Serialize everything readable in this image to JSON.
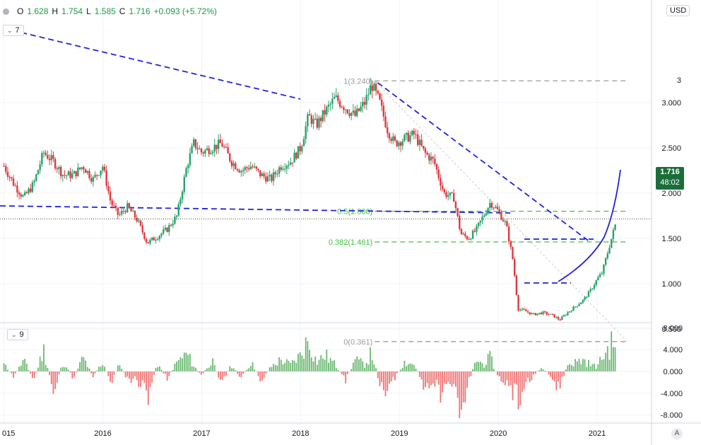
{
  "header": {
    "open_label": "O",
    "open": "1.628",
    "high_label": "H",
    "high": "1.754",
    "low_label": "L",
    "low": "1.585",
    "close_label": "C",
    "close": "1.716",
    "change": "+0.093 (+5.72%)"
  },
  "pane_badges": {
    "main": "7",
    "oscillator": "9"
  },
  "currency_button": "USD",
  "auto_scale_button": "A",
  "last_price": {
    "value": "1.716",
    "countdown": "48:02"
  },
  "colors": {
    "up": "#26a269",
    "down": "#e0383e",
    "trend": "#2222dd",
    "fib_green": "#3ec43e",
    "fib_gray": "#9b9b9b",
    "osc_up": "#6ab870",
    "osc_down": "#f07373"
  },
  "chart_data": [
    {
      "type": "candlestick",
      "title": "",
      "xlabel": "",
      "ylabel": "USD",
      "x_ticks": [
        "015",
        "2016",
        "2017",
        "2018",
        "2019",
        "2020",
        "2021"
      ],
      "y_ticks": [
        "3",
        "3.000",
        "2.500",
        "2.000",
        "1.500",
        "1.000",
        "0.500"
      ],
      "ylim": [
        0.25,
        3.3
      ],
      "last_price": 1.716,
      "fibonacci": [
        {
          "label": "1(3.240)",
          "value": 3.24
        },
        {
          "label": "0.5(1.800)",
          "value": 1.8
        },
        {
          "label": "0.382(1.461)",
          "value": 1.461
        },
        {
          "label": "0(0.361)",
          "value": 0.361
        }
      ],
      "series": [
        {
          "name": "weekly close (approx.)",
          "points": [
            [
              2015.0,
              2.3
            ],
            [
              2015.1,
              2.1
            ],
            [
              2015.2,
              1.95
            ],
            [
              2015.3,
              2.1
            ],
            [
              2015.4,
              2.45
            ],
            [
              2015.5,
              2.35
            ],
            [
              2015.6,
              2.2
            ],
            [
              2015.7,
              2.2
            ],
            [
              2015.8,
              2.3
            ],
            [
              2015.9,
              2.15
            ],
            [
              2016.0,
              2.3
            ],
            [
              2016.08,
              1.9
            ],
            [
              2016.16,
              1.75
            ],
            [
              2016.25,
              1.85
            ],
            [
              2016.35,
              1.7
            ],
            [
              2016.45,
              1.45
            ],
            [
              2016.55,
              1.52
            ],
            [
              2016.65,
              1.6
            ],
            [
              2016.75,
              1.75
            ],
            [
              2016.85,
              2.3
            ],
            [
              2016.92,
              2.55
            ],
            [
              2017.0,
              2.45
            ],
            [
              2017.1,
              2.5
            ],
            [
              2017.2,
              2.55
            ],
            [
              2017.3,
              2.35
            ],
            [
              2017.4,
              2.25
            ],
            [
              2017.5,
              2.3
            ],
            [
              2017.6,
              2.2
            ],
            [
              2017.7,
              2.15
            ],
            [
              2017.8,
              2.3
            ],
            [
              2017.9,
              2.35
            ],
            [
              2018.0,
              2.5
            ],
            [
              2018.08,
              2.85
            ],
            [
              2018.16,
              2.75
            ],
            [
              2018.25,
              2.9
            ],
            [
              2018.35,
              3.05
            ],
            [
              2018.45,
              2.95
            ],
            [
              2018.55,
              2.85
            ],
            [
              2018.65,
              3.0
            ],
            [
              2018.72,
              3.2
            ],
            [
              2018.8,
              3.0
            ],
            [
              2018.88,
              2.7
            ],
            [
              2018.95,
              2.55
            ],
            [
              2019.05,
              2.6
            ],
            [
              2019.15,
              2.65
            ],
            [
              2019.25,
              2.45
            ],
            [
              2019.35,
              2.35
            ],
            [
              2019.45,
              2.0
            ],
            [
              2019.55,
              1.95
            ],
            [
              2019.62,
              1.55
            ],
            [
              2019.7,
              1.5
            ],
            [
              2019.78,
              1.6
            ],
            [
              2019.85,
              1.75
            ],
            [
              2019.92,
              1.9
            ],
            [
              2020.0,
              1.8
            ],
            [
              2020.08,
              1.65
            ],
            [
              2020.15,
              1.25
            ],
            [
              2020.2,
              0.72
            ],
            [
              2020.27,
              0.7
            ],
            [
              2020.35,
              0.66
            ],
            [
              2020.45,
              0.68
            ],
            [
              2020.55,
              0.65
            ],
            [
              2020.62,
              0.6
            ],
            [
              2020.7,
              0.68
            ],
            [
              2020.78,
              0.75
            ],
            [
              2020.86,
              0.82
            ],
            [
              2020.93,
              0.92
            ],
            [
              2021.0,
              1.05
            ],
            [
              2021.05,
              1.12
            ],
            [
              2021.1,
              1.32
            ],
            [
              2021.15,
              1.52
            ],
            [
              2021.2,
              1.716
            ]
          ]
        }
      ],
      "annotations": [
        "descending trendline 2015-2018",
        "flat trendline 2015-2020",
        "descending trendline from 2018 high",
        "channel lines 2020 lows",
        "curved uptrend 2020-2021"
      ]
    },
    {
      "type": "bar",
      "title": "",
      "y_ticks": [
        "8.000",
        "4.000",
        "0.000",
        "-4.000",
        "-8.000"
      ],
      "ylim": [
        -8.5,
        8.5
      ],
      "series": [
        {
          "name": "change (approx.)",
          "points": [
            [
              2015.0,
              1.5
            ],
            [
              2015.1,
              -1.2
            ],
            [
              2015.2,
              2.5
            ],
            [
              2015.3,
              -2.0
            ],
            [
              2015.4,
              4.8
            ],
            [
              2015.5,
              -4.5
            ],
            [
              2015.6,
              2.2
            ],
            [
              2015.7,
              -1.5
            ],
            [
              2015.8,
              3.0
            ],
            [
              2015.9,
              -1.0
            ],
            [
              2016.0,
              2.0
            ],
            [
              2016.08,
              -2.5
            ],
            [
              2016.16,
              1.5
            ],
            [
              2016.25,
              -1.8
            ],
            [
              2016.35,
              -2.0
            ],
            [
              2016.45,
              -5.5
            ],
            [
              2016.55,
              1.8
            ],
            [
              2016.65,
              -1.5
            ],
            [
              2016.75,
              2.0
            ],
            [
              2016.85,
              3.8
            ],
            [
              2016.92,
              1.2
            ],
            [
              2017.0,
              -1.0
            ],
            [
              2017.1,
              2.5
            ],
            [
              2017.2,
              -2.5
            ],
            [
              2017.3,
              1.5
            ],
            [
              2017.4,
              -1.5
            ],
            [
              2017.5,
              2.0
            ],
            [
              2017.6,
              -2.0
            ],
            [
              2017.7,
              1.0
            ],
            [
              2017.8,
              2.5
            ],
            [
              2017.9,
              1.5
            ],
            [
              2018.0,
              3.5
            ],
            [
              2018.08,
              7.0
            ],
            [
              2018.16,
              2.0
            ],
            [
              2018.25,
              3.5
            ],
            [
              2018.35,
              1.5
            ],
            [
              2018.45,
              -2.0
            ],
            [
              2018.55,
              2.5
            ],
            [
              2018.65,
              1.5
            ],
            [
              2018.72,
              4.0
            ],
            [
              2018.8,
              -2.5
            ],
            [
              2018.88,
              -4.0
            ],
            [
              2018.95,
              -1.5
            ],
            [
              2019.05,
              2.0
            ],
            [
              2019.15,
              1.5
            ],
            [
              2019.25,
              -3.0
            ],
            [
              2019.35,
              -2.5
            ],
            [
              2019.45,
              -5.5
            ],
            [
              2019.55,
              -3.0
            ],
            [
              2019.62,
              -8.0
            ],
            [
              2019.7,
              -2.0
            ],
            [
              2019.78,
              2.5
            ],
            [
              2019.85,
              1.5
            ],
            [
              2019.92,
              3.0
            ],
            [
              2020.0,
              -1.5
            ],
            [
              2020.08,
              -2.5
            ],
            [
              2020.15,
              -5.0
            ],
            [
              2020.2,
              -6.5
            ],
            [
              2020.27,
              -3.0
            ],
            [
              2020.35,
              -1.0
            ],
            [
              2020.45,
              1.0
            ],
            [
              2020.55,
              -2.0
            ],
            [
              2020.62,
              -3.5
            ],
            [
              2020.7,
              1.5
            ],
            [
              2020.78,
              2.0
            ],
            [
              2020.86,
              2.5
            ],
            [
              2020.93,
              1.5
            ],
            [
              2021.0,
              1.0
            ],
            [
              2021.05,
              3.0
            ],
            [
              2021.1,
              4.5
            ],
            [
              2021.15,
              6.0
            ],
            [
              2021.2,
              7.2
            ]
          ]
        }
      ]
    }
  ]
}
